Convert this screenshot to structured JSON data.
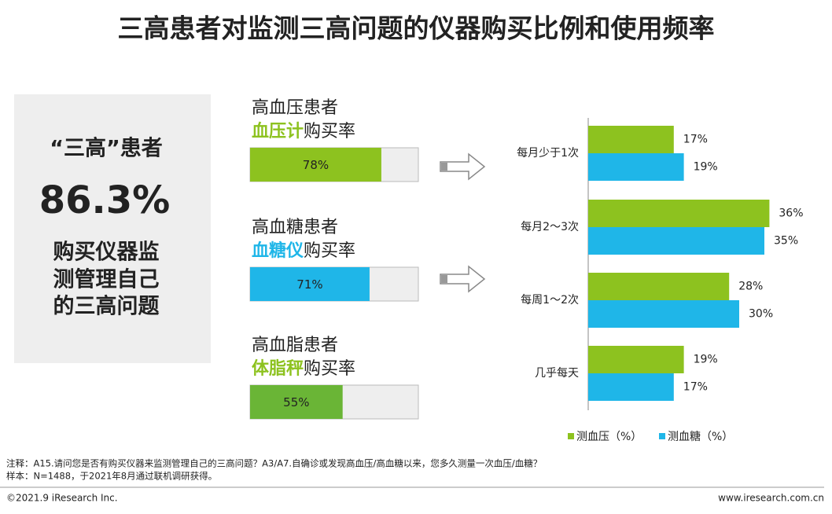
{
  "title": "三高患者对监测三高问题的仪器购买比例和使用频率",
  "summary": {
    "heading": "“三高”患者",
    "value": "86.3%",
    "lines": [
      "购买仪器监",
      "测管理自己",
      "的三高问题"
    ],
    "color": "#8dc21f"
  },
  "chart_data": [
    {
      "type": "progress",
      "xlim": [
        0,
        100
      ],
      "items": [
        {
          "group": "高血压患者",
          "device": "血压计",
          "suffix": "购买率",
          "value": 78,
          "value_label": "78%",
          "color": "#8dc21f",
          "device_color": "#8dc21f"
        },
        {
          "group": "高血糖患者",
          "device": "血糖仪",
          "suffix": "购买率",
          "value": 71,
          "value_label": "71%",
          "color": "#1fb6e8",
          "device_color": "#1fb6e8"
        },
        {
          "group": "高血脂患者",
          "device": "体脂秤",
          "suffix": "购买率",
          "value": 55,
          "value_label": "55%",
          "color": "#6ab536",
          "device_color": "#8dc21f"
        }
      ]
    },
    {
      "type": "hbar",
      "xlim": [
        0,
        40
      ],
      "categories": [
        "每月少于1次",
        "每月2～3次",
        "每周1～2次",
        "几乎每天"
      ],
      "series": [
        {
          "name": "测血压（%）",
          "color": "#8dc21f",
          "values": [
            17,
            36,
            28,
            19
          ],
          "value_labels": [
            "17%",
            "36%",
            "28%",
            "19%"
          ]
        },
        {
          "name": "测血糖（%）",
          "color": "#1fb6e8",
          "values": [
            19,
            35,
            30,
            17
          ],
          "value_labels": [
            "19%",
            "35%",
            "30%",
            "17%"
          ]
        }
      ]
    }
  ],
  "notes": [
    "注释：A15.请问您是否有购买仪器来监测管理自己的三高问题？A3/A7.自确诊或发现高血压/高血糖以来，您多久测量一次血压/血糖？",
    "样本：N=1488，于2021年8月通过联机调研获得。"
  ],
  "footer": {
    "left": "©2021.9 iResearch Inc.",
    "right": "www.iresearch.com.cn"
  }
}
